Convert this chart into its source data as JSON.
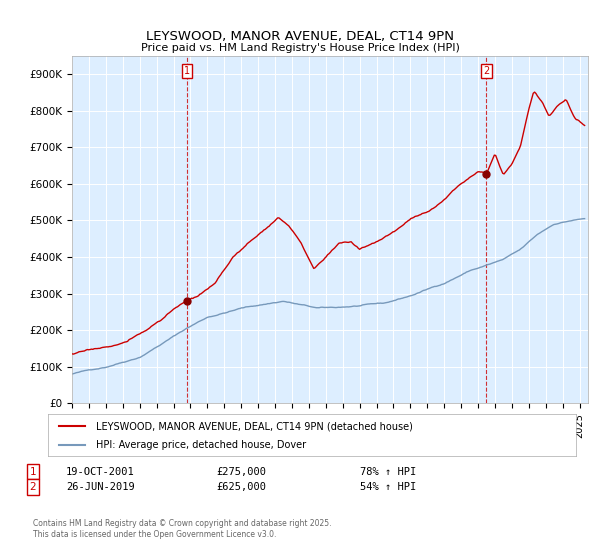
{
  "title": "LEYSWOOD, MANOR AVENUE, DEAL, CT14 9PN",
  "subtitle": "Price paid vs. HM Land Registry's House Price Index (HPI)",
  "ylim": [
    0,
    950000
  ],
  "yticks": [
    0,
    100000,
    200000,
    300000,
    400000,
    500000,
    600000,
    700000,
    800000,
    900000
  ],
  "ytick_labels": [
    "£0",
    "£100K",
    "£200K",
    "£300K",
    "£400K",
    "£500K",
    "£600K",
    "£700K",
    "£800K",
    "£900K"
  ],
  "xlim_start": 1995.0,
  "xlim_end": 2025.5,
  "xticks": [
    1995,
    1996,
    1997,
    1998,
    1999,
    2000,
    2001,
    2002,
    2003,
    2004,
    2005,
    2006,
    2007,
    2008,
    2009,
    2010,
    2011,
    2012,
    2013,
    2014,
    2015,
    2016,
    2017,
    2018,
    2019,
    2020,
    2021,
    2022,
    2023,
    2024,
    2025
  ],
  "red_line_color": "#cc0000",
  "blue_line_color": "#7799bb",
  "vline_color": "#cc0000",
  "plot_bg_color": "#ddeeff",
  "marker1_x": 2001.8,
  "marker1_label": "1",
  "marker1_price": "£275,000",
  "marker1_date": "19-OCT-2001",
  "marker1_hpi": "78% ↑ HPI",
  "marker2_x": 2019.5,
  "marker2_label": "2",
  "marker2_price": "£625,000",
  "marker2_date": "26-JUN-2019",
  "marker2_hpi": "54% ↑ HPI",
  "legend_label_red": "LEYSWOOD, MANOR AVENUE, DEAL, CT14 9PN (detached house)",
  "legend_label_blue": "HPI: Average price, detached house, Dover",
  "footer": "Contains HM Land Registry data © Crown copyright and database right 2025.\nThis data is licensed under the Open Government Licence v3.0.",
  "background_color": "#ffffff"
}
